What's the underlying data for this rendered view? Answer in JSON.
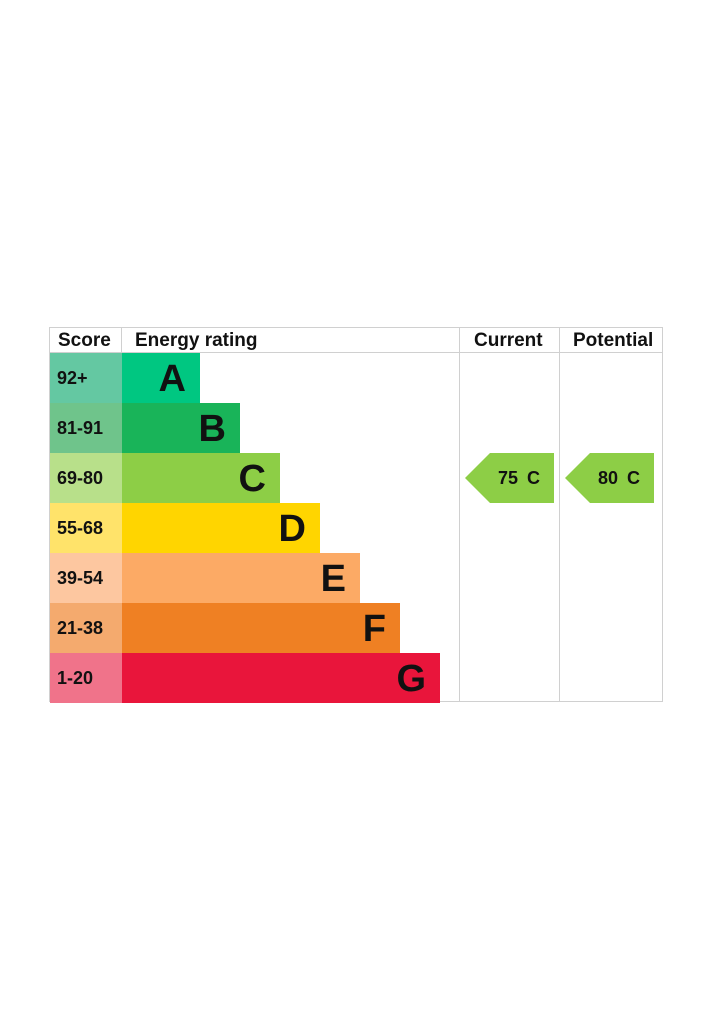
{
  "chart_data": {
    "type": "bar",
    "headers": {
      "score": "Score",
      "rating": "Energy rating",
      "current": "Current",
      "potential": "Potential"
    },
    "bands": [
      {
        "score": "92+",
        "letter": "A",
        "color": "#00c781",
        "score_color": "#64c8a2"
      },
      {
        "score": "81-91",
        "letter": "B",
        "color": "#19b459",
        "score_color": "#6fc48b"
      },
      {
        "score": "69-80",
        "letter": "C",
        "color": "#8dce46",
        "score_color": "#b8e08a"
      },
      {
        "score": "55-68",
        "letter": "D",
        "color": "#ffd500",
        "score_color": "#ffe36a"
      },
      {
        "score": "39-54",
        "letter": "E",
        "color": "#fcaa65",
        "score_color": "#fdc7a0"
      },
      {
        "score": "21-38",
        "letter": "F",
        "color": "#ef8023",
        "score_color": "#f4aa6e"
      },
      {
        "score": "1-20",
        "letter": "G",
        "color": "#e9153b",
        "score_color": "#f0738a"
      }
    ],
    "current": {
      "value": 75,
      "letter": "C",
      "label": "75 C",
      "color": "#8dce46"
    },
    "potential": {
      "value": 80,
      "letter": "C",
      "label": "80 C",
      "color": "#8dce46"
    }
  }
}
